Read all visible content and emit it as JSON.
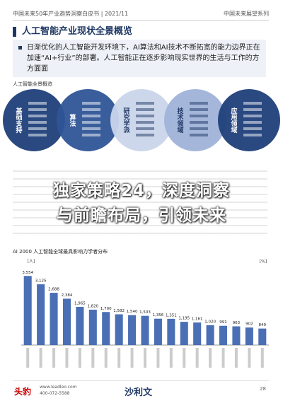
{
  "header": {
    "left": "中国未来50年产业趋势洞察白皮书 | 2021/11",
    "right": "中国未来展望系列"
  },
  "section_title": "人工智能产业现状全景概览",
  "bullet": "日渐优化的人工智能开发环境下，AI算法和AI技术不断拓宽的能力边界正在加速“AI+行业”的部署。人工智能正在逐步影响现实世界的生活与工作的方方面面",
  "diagram": {
    "title": "人工智能全景概览",
    "nodes": [
      {
        "label": "基础支持"
      },
      {
        "label": "算法"
      },
      {
        "label": "研究学派"
      },
      {
        "label": "技术领域"
      },
      {
        "label": "应用领域"
      }
    ]
  },
  "overlay": {
    "lines": [
      "独家策略24，深度洞察",
      "与前瞻布局，引领未来"
    ]
  },
  "chart": {
    "type": "bar",
    "title": "AI 2000 人工智能全球最具影响力学者分布",
    "y_unit": "[人]",
    "y2_unit": "[%]",
    "color": "#4a6fb5",
    "values": [
      3554,
      3125,
      2688,
      2384,
      1965,
      1820,
      1700,
      1582,
      1540,
      1503,
      1356,
      1351,
      1195,
      1161,
      1020,
      991,
      963,
      902,
      849
    ],
    "value_labels": [
      "3,554",
      "3,125",
      "2,688",
      "2,384",
      "1,965",
      "1,820",
      "1,700",
      "1,582",
      "1,540",
      "1,503",
      "1,356",
      "1,351",
      "1,195",
      "1,161",
      "1,020",
      "991",
      "963",
      "902",
      "849"
    ],
    "ylim": [
      0,
      4000
    ]
  },
  "footer": {
    "brand": "头豹",
    "site": "www.leadleo.com",
    "phone": "400-072-5588",
    "partner": "沙利文",
    "page": "28"
  }
}
